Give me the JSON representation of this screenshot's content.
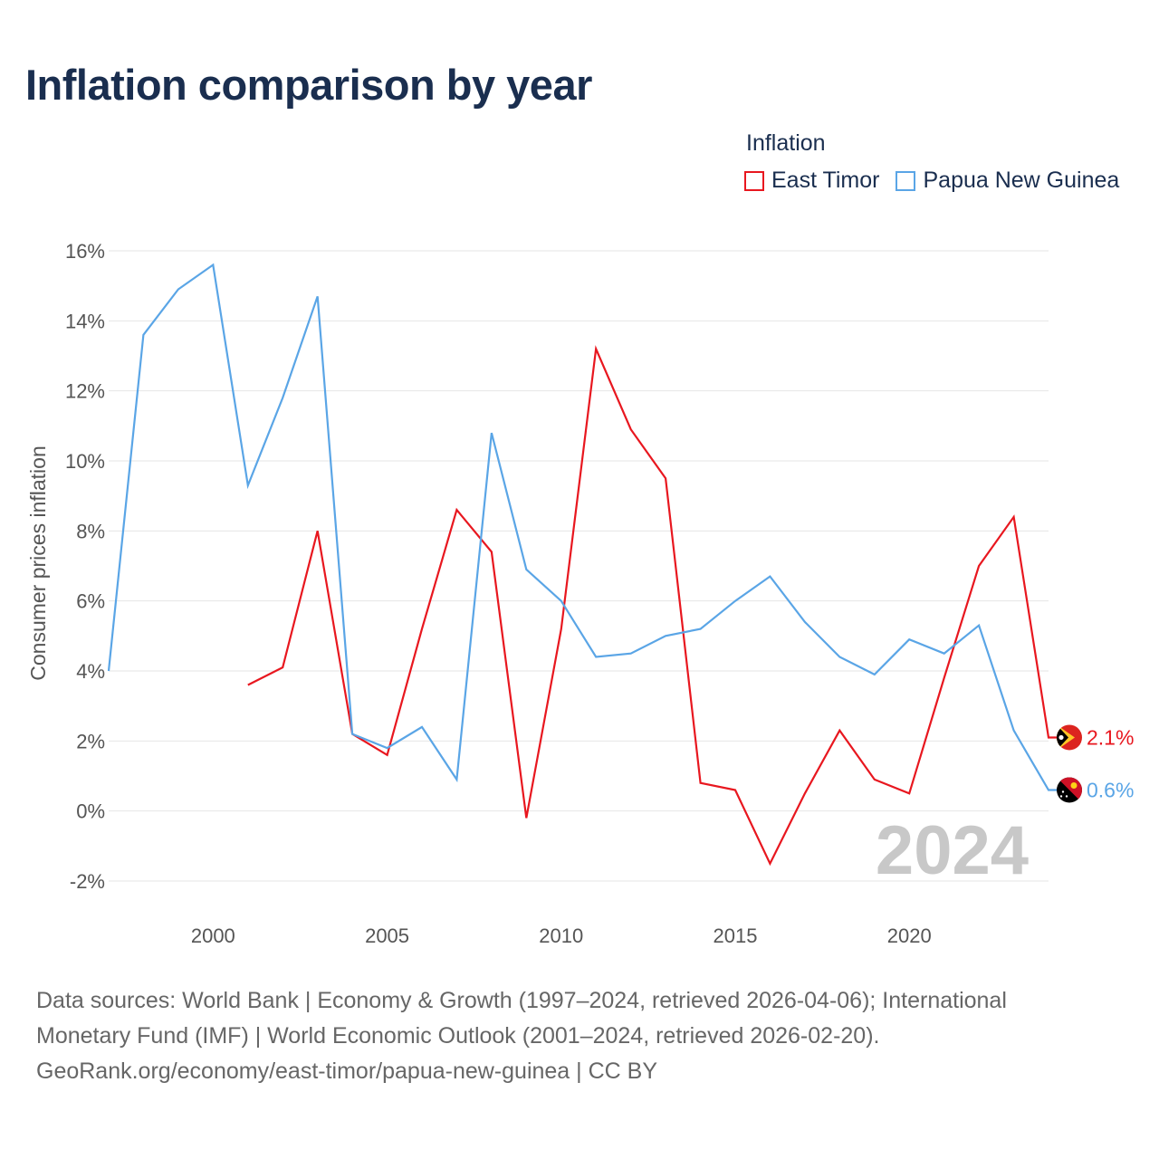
{
  "title": "Inflation comparison by year",
  "legend": {
    "title": "Inflation",
    "items": [
      {
        "label": "East Timor",
        "color": "#e8171f"
      },
      {
        "label": "Papua New Guinea",
        "color": "#5aa5e6"
      }
    ]
  },
  "footer": {
    "line1": "Data sources: World Bank | Economy & Growth (1997–2024, retrieved 2026-04-06); International",
    "line2": "Monetary Fund (IMF) | World Economic Outlook (2001–2024, retrieved 2026-02-20).",
    "line3": "GeoRank.org/economy/east-timor/papua-new-guinea | CC BY"
  },
  "chart_data": {
    "type": "line",
    "title": "Inflation comparison by year",
    "xlabel": "",
    "ylabel": "Consumer prices inflation",
    "xlim": [
      1997,
      2024
    ],
    "ylim": [
      -2,
      16
    ],
    "x_ticks": [
      2000,
      2005,
      2010,
      2015,
      2020
    ],
    "y_ticks": [
      {
        "value": -2,
        "label": "-2%"
      },
      {
        "value": 0,
        "label": "0%"
      },
      {
        "value": 2,
        "label": "2%"
      },
      {
        "value": 4,
        "label": "4%"
      },
      {
        "value": 6,
        "label": "6%"
      },
      {
        "value": 8,
        "label": "8%"
      },
      {
        "value": 10,
        "label": "10%"
      },
      {
        "value": 12,
        "label": "12%"
      },
      {
        "value": 14,
        "label": "14%"
      },
      {
        "value": 16,
        "label": "16%"
      }
    ],
    "grid": true,
    "year_watermark": "2024",
    "series": [
      {
        "name": "East Timor",
        "color": "#e8171f",
        "end_label": "2.1%",
        "x": [
          2001,
          2002,
          2003,
          2004,
          2005,
          2006,
          2007,
          2008,
          2009,
          2010,
          2011,
          2012,
          2013,
          2014,
          2015,
          2016,
          2017,
          2018,
          2019,
          2020,
          2021,
          2022,
          2023,
          2024
        ],
        "values": [
          3.6,
          4.1,
          8.0,
          2.2,
          1.6,
          5.2,
          8.6,
          7.4,
          -0.2,
          5.2,
          13.2,
          10.9,
          9.5,
          0.8,
          0.6,
          -1.5,
          0.5,
          2.3,
          0.9,
          0.5,
          3.8,
          7.0,
          8.4,
          2.1
        ]
      },
      {
        "name": "Papua New Guinea",
        "color": "#5aa5e6",
        "end_label": "0.6%",
        "x": [
          1997,
          1998,
          1999,
          2000,
          2001,
          2002,
          2003,
          2004,
          2005,
          2006,
          2007,
          2008,
          2009,
          2010,
          2011,
          2012,
          2013,
          2014,
          2015,
          2016,
          2017,
          2018,
          2019,
          2020,
          2021,
          2022,
          2023,
          2024
        ],
        "values": [
          4.0,
          13.6,
          14.9,
          15.6,
          9.3,
          11.8,
          14.7,
          2.2,
          1.8,
          2.4,
          0.9,
          10.8,
          6.9,
          6.0,
          4.4,
          4.5,
          5.0,
          5.2,
          6.0,
          6.7,
          5.4,
          4.4,
          3.9,
          4.9,
          4.5,
          5.3,
          2.3,
          0.6
        ]
      }
    ]
  }
}
